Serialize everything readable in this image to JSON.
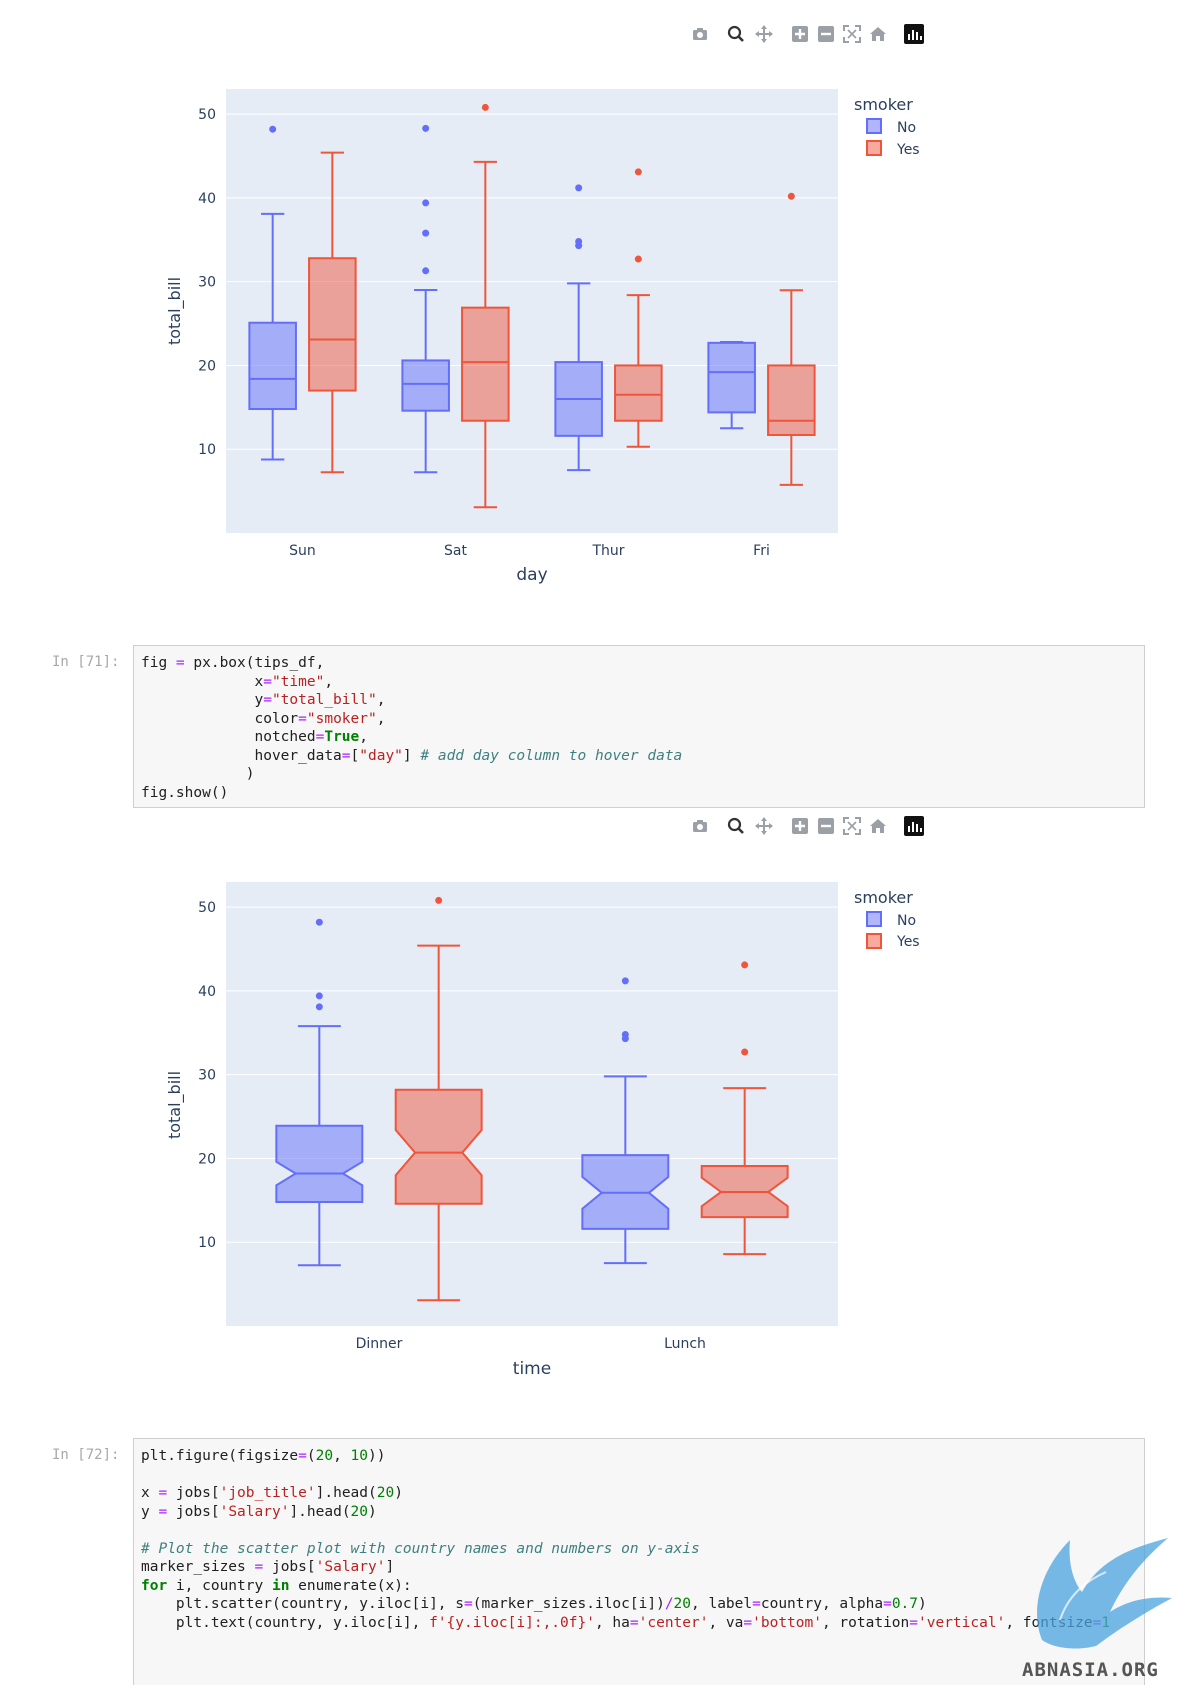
{
  "modebar": {
    "icons": [
      "camera-icon",
      "zoom-icon",
      "pan-icon",
      "zoom-in-icon",
      "zoom-out-icon",
      "autoscale-icon",
      "reset-axes-icon",
      "plotly-logo"
    ]
  },
  "colors": {
    "no": "#636efa",
    "yes": "#ef553b",
    "plot_bg": "#e5ecf6"
  },
  "plot1": {
    "legend_title": "smoker",
    "legend_items": [
      "No",
      "Yes"
    ],
    "xlabel": "day",
    "ylabel": "total_bill",
    "yticks": [
      "10",
      "20",
      "30",
      "40",
      "50"
    ]
  },
  "plot2": {
    "legend_title": "smoker",
    "legend_items": [
      "No",
      "Yes"
    ],
    "xlabel": "time",
    "ylabel": "total_bill",
    "yticks": [
      "10",
      "20",
      "30",
      "40",
      "50"
    ]
  },
  "cell71": {
    "prompt": "In [71]:",
    "lines": [
      "fig = px.box(tips_df,",
      "             x=\"time\",",
      "             y=\"total_bill\",",
      "             color=\"smoker\",",
      "             notched=True,",
      "             hover_data=[\"day\"] # add day column to hover data",
      "            )",
      "fig.show()"
    ]
  },
  "cell72": {
    "prompt": "In [72]:",
    "lines": [
      "plt.figure(figsize=(20, 10))",
      "",
      "x = jobs['job_title'].head(20)",
      "y = jobs['Salary'].head(20)",
      "",
      "# Plot the scatter plot with country names and numbers on y-axis",
      "marker_sizes = jobs['Salary']",
      "for i, country in enumerate(x):",
      "    plt.scatter(country, y.iloc[i], s=(marker_sizes.iloc[i])/20, label=country, alpha=0.7)",
      "    plt.text(country, y.iloc[i], f'{y.iloc[i]:,.0f}', ha='center', va='bottom', rotation='vertical', fontsize=1"
    ]
  },
  "watermark": {
    "text": "ABNASIA.ORG"
  },
  "chart_data": [
    {
      "type": "box",
      "xlabel": "day",
      "ylabel": "total_bill",
      "legend_title": "smoker",
      "legend_placement": "top-right",
      "categories": [
        "Sun",
        "Sat",
        "Thur",
        "Fri"
      ],
      "ylim": [
        0,
        53
      ],
      "yticks": [
        10,
        20,
        30,
        40,
        50
      ],
      "notched": false,
      "series": [
        {
          "name": "No",
          "boxes": [
            {
              "min": 8.77,
              "q1": 14.8,
              "median": 18.4,
              "q3": 25.1,
              "max": 38.1,
              "outliers": [
                48.2
              ]
            },
            {
              "min": 7.25,
              "q1": 14.6,
              "median": 17.8,
              "q3": 20.6,
              "max": 29.0,
              "outliers": [
                31.3,
                35.8,
                39.4,
                48.3
              ]
            },
            {
              "min": 7.5,
              "q1": 11.6,
              "median": 16.0,
              "q3": 20.4,
              "max": 29.8,
              "outliers": [
                34.3,
                34.8,
                41.2
              ]
            },
            {
              "min": 12.5,
              "q1": 14.4,
              "median": 19.2,
              "q3": 22.7,
              "max": 22.8,
              "outliers": []
            }
          ]
        },
        {
          "name": "Yes",
          "boxes": [
            {
              "min": 7.25,
              "q1": 17.0,
              "median": 23.1,
              "q3": 32.8,
              "max": 45.4,
              "outliers": []
            },
            {
              "min": 3.07,
              "q1": 13.4,
              "median": 20.4,
              "q3": 26.9,
              "max": 44.3,
              "outliers": [
                50.8
              ]
            },
            {
              "min": 10.3,
              "q1": 13.4,
              "median": 16.5,
              "q3": 20.0,
              "max": 28.4,
              "outliers": [
                32.7,
                43.1
              ]
            },
            {
              "min": 5.75,
              "q1": 11.7,
              "median": 13.4,
              "q3": 20.0,
              "max": 28.97,
              "outliers": [
                40.2
              ]
            }
          ]
        }
      ]
    },
    {
      "type": "box",
      "xlabel": "time",
      "ylabel": "total_bill",
      "legend_title": "smoker",
      "legend_placement": "top-right",
      "categories": [
        "Dinner",
        "Lunch"
      ],
      "ylim": [
        0,
        53
      ],
      "yticks": [
        10,
        20,
        30,
        40,
        50
      ],
      "notched": true,
      "series": [
        {
          "name": "No",
          "boxes": [
            {
              "min": 7.25,
              "q1": 14.8,
              "median": 18.2,
              "q3": 23.9,
              "max": 35.8,
              "notch_low": 16.8,
              "notch_high": 19.6,
              "outliers": [
                38.1,
                39.4,
                48.2
              ]
            },
            {
              "min": 7.5,
              "q1": 11.6,
              "median": 15.9,
              "q3": 20.4,
              "max": 29.8,
              "notch_low": 14.0,
              "notch_high": 17.8,
              "outliers": [
                34.3,
                34.8,
                41.2
              ]
            }
          ]
        },
        {
          "name": "Yes",
          "boxes": [
            {
              "min": 3.07,
              "q1": 14.6,
              "median": 20.7,
              "q3": 28.2,
              "max": 45.4,
              "notch_low": 18.0,
              "notch_high": 23.4,
              "outliers": [
                50.8
              ]
            },
            {
              "min": 8.58,
              "q1": 13.0,
              "median": 16.0,
              "q3": 19.1,
              "max": 28.4,
              "notch_low": 14.3,
              "notch_high": 17.7,
              "outliers": [
                32.7,
                43.1
              ]
            }
          ]
        }
      ]
    }
  ]
}
